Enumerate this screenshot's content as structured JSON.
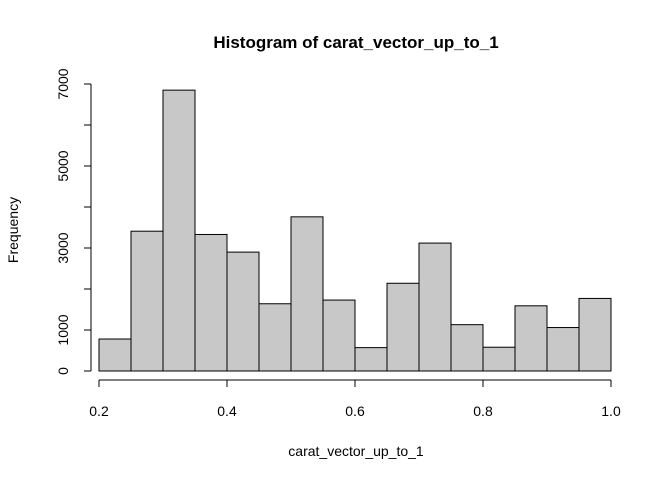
{
  "chart_data": {
    "type": "bar",
    "title": "Histogram of carat_vector_up_to_1",
    "xlabel": "carat_vector_up_to_1",
    "ylabel": "Frequency",
    "bin_edges": [
      0.2,
      0.25,
      0.3,
      0.35,
      0.4,
      0.45,
      0.5,
      0.55,
      0.6,
      0.65,
      0.7,
      0.75,
      0.8,
      0.85,
      0.9,
      0.95,
      1.0
    ],
    "values": [
      780,
      3410,
      6850,
      3330,
      2900,
      1640,
      3760,
      1730,
      570,
      2140,
      3120,
      1130,
      580,
      1590,
      1060,
      1770
    ],
    "xlim": [
      0.2,
      1.0
    ],
    "ylim": [
      0,
      7000
    ],
    "x_ticks": [
      0.2,
      0.4,
      0.6,
      0.8,
      1.0
    ],
    "x_tick_labels": [
      "0.2",
      "0.4",
      "0.6",
      "0.8",
      "1.0"
    ],
    "y_ticks": [
      0,
      1000,
      2000,
      3000,
      4000,
      5000,
      6000,
      7000
    ],
    "y_tick_labels": [
      "0",
      "1000",
      "",
      "3000",
      "",
      "5000",
      "",
      "7000"
    ],
    "bar_fill": "#c8c8c8",
    "bar_stroke": "#000000",
    "grid": false,
    "legend": "none"
  }
}
